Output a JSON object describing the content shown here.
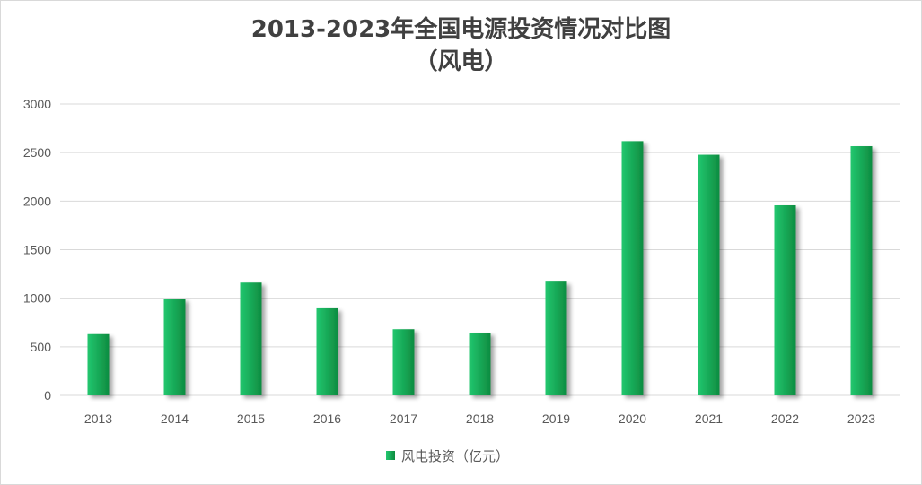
{
  "chart_data": {
    "type": "bar",
    "title": "2013-2023年全国电源投资情况对比图",
    "subtitle": "（风电）",
    "categories": [
      "2013",
      "2014",
      "2015",
      "2016",
      "2017",
      "2018",
      "2019",
      "2020",
      "2021",
      "2022",
      "2023"
    ],
    "series": [
      {
        "name": "风电投资（亿元）",
        "values": [
          630,
          993,
          1161,
          896,
          681,
          646,
          1171,
          2618,
          2478,
          1957,
          2566
        ],
        "color": "#16a34a"
      }
    ],
    "ylim": [
      0,
      3000
    ],
    "yticks": [
      0,
      500,
      1000,
      1500,
      2000,
      2500,
      3000
    ],
    "grid": true,
    "legend_position": "bottom",
    "colors": {
      "bar_light": "#1fc16b",
      "bar_dark": "#0c8a3e",
      "grid": "#d9d9d9",
      "text": "#595959",
      "title": "#404040"
    }
  }
}
